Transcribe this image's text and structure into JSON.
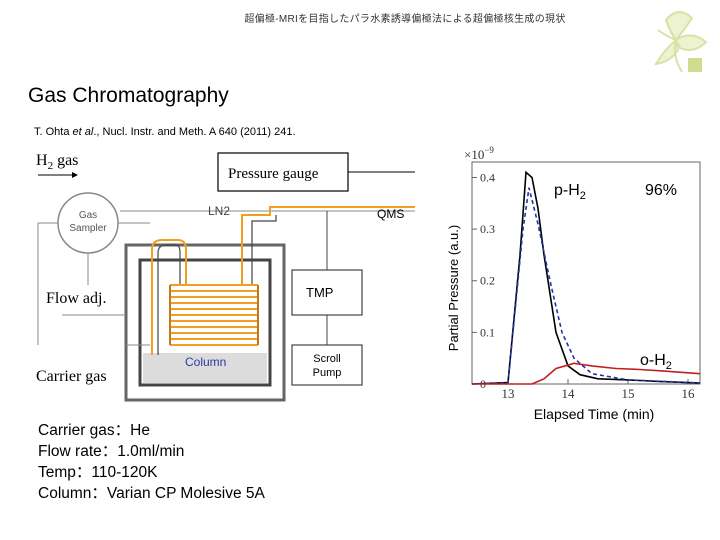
{
  "header": {
    "title": "超偏極-MRIを目指したパラ水素誘導偏極法による超偏極核生成の現状"
  },
  "slide": {
    "title": "Gas Chromatography",
    "reference_authors": "T. Ohta ",
    "reference_etal": "et al",
    "reference_rest": "., Nucl. Instr. and Meth. A 640 (2011) 241."
  },
  "apparatus": {
    "h2_gas": "H",
    "h2_sub": "2",
    "h2_suffix": " gas",
    "pressure_gauge": "Pressure gauge",
    "gas_sampler_1": "Gas",
    "gas_sampler_2": "Sampler",
    "ln2": "LN2",
    "qms": "QMS",
    "tmp": "TMP",
    "flow_adj": "Flow adj.",
    "column": "Column",
    "carrier_gas": "Carrier gas",
    "scroll_pump_1": "Scroll",
    "scroll_pump_2": "Pump"
  },
  "chart_data": {
    "type": "line",
    "ylabel": "Partial Pressure (a.u.)",
    "xlabel": "Elapsed Time (min)",
    "y_multiplier": "×10",
    "y_exponent": "−9",
    "xlim": [
      12.4,
      16.2
    ],
    "ylim": [
      0,
      0.43
    ],
    "x_ticks": [
      13,
      14,
      15,
      16
    ],
    "y_ticks": [
      0,
      0.1,
      0.2,
      0.3,
      0.4
    ],
    "annotations": {
      "p_h2": "p-H",
      "p_h2_sub": "2",
      "percent": "96%",
      "o_h2": "o-H",
      "o_h2_sub": "2"
    },
    "series": [
      {
        "style": "solid-black",
        "x": [
          12.4,
          13.0,
          13.2,
          13.3,
          13.4,
          13.5,
          13.6,
          13.8,
          14.0,
          14.2,
          14.5,
          15.0,
          15.5,
          16.2
        ],
        "y": [
          0.0,
          0.003,
          0.25,
          0.41,
          0.4,
          0.34,
          0.25,
          0.1,
          0.035,
          0.018,
          0.01,
          0.008,
          0.005,
          0.002
        ]
      },
      {
        "style": "dashed-blue",
        "x": [
          12.4,
          13.0,
          13.25,
          13.35,
          13.5,
          13.7,
          13.9,
          14.1,
          14.4,
          15.0,
          16.2
        ],
        "y": [
          0.0,
          0.002,
          0.3,
          0.38,
          0.31,
          0.2,
          0.1,
          0.05,
          0.02,
          0.008,
          0.002
        ]
      },
      {
        "style": "solid-red",
        "x": [
          12.4,
          13.4,
          13.6,
          13.8,
          14.1,
          14.4,
          14.8,
          15.2,
          15.6,
          16.2
        ],
        "y": [
          0.0,
          0.0,
          0.01,
          0.03,
          0.04,
          0.035,
          0.03,
          0.028,
          0.025,
          0.02
        ]
      }
    ]
  },
  "conditions": {
    "carrier_gas": "Carrier gas：He",
    "flow_rate": "Flow rate：1.0ml/min",
    "temp": "Temp：110-120K",
    "column": "Column：Varian CP Molesive 5A"
  }
}
